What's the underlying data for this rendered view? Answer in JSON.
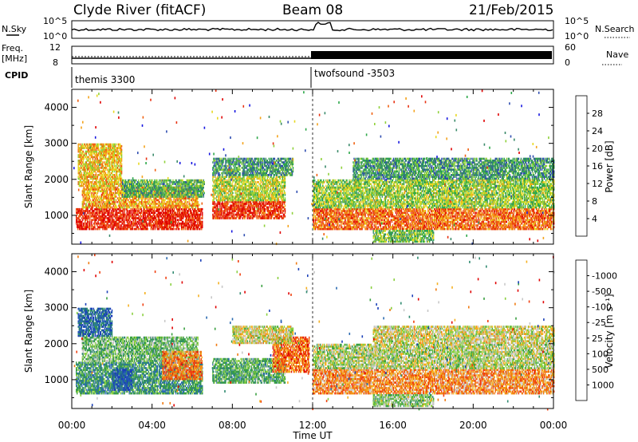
{
  "header": {
    "station": "Clyde River (fitACF)",
    "beam": "Beam 08",
    "date": "21/Feb/2015"
  },
  "top_panels": {
    "nsky_label": "N.Sky",
    "nsky_ticks": [
      "10^5",
      "10^0"
    ],
    "nsearch_label": "N.Search",
    "nsearch_ticks": [
      "10^5",
      "10^0"
    ],
    "freq_label_1": "Freq.",
    "freq_label_2": "[MHz]",
    "freq_ticks": [
      "12",
      "8"
    ],
    "nave_label": "Nave",
    "nave_ticks": [
      "60",
      "0"
    ],
    "cpid_label": "CPID",
    "modes": [
      {
        "name": "themis 3300",
        "start_hour": 0
      },
      {
        "name": "twofsound -3503",
        "start_hour": 12
      }
    ]
  },
  "chart_data": [
    {
      "type": "heatmap",
      "title": "",
      "xlabel": "Time UT",
      "ylabel": "Slant Range [km]",
      "x_ticks": [
        "00:00",
        "04:00",
        "08:00",
        "12:00",
        "16:00",
        "20:00",
        "00:00"
      ],
      "x_range_hours": [
        0,
        24
      ],
      "y_ticks": [
        1000,
        2000,
        3000,
        4000
      ],
      "y_range": [
        200,
        4500
      ],
      "colorbar": {
        "label": "Power [dB]",
        "ticks": [
          "4",
          "8",
          "12",
          "16",
          "20",
          "24",
          "28"
        ],
        "colors": [
          "#1515e0",
          "#2e4db0",
          "#3a8a6a",
          "#2ea84a",
          "#8fd13a",
          "#e8d820",
          "#f4a21a",
          "#f06010",
          "#e83010",
          "#e00000"
        ]
      },
      "blobs": [
        {
          "t0": 0.2,
          "t1": 6.5,
          "r0": 600,
          "r1": 1200,
          "v": 0.88
        },
        {
          "t0": 0.5,
          "t1": 6.3,
          "r0": 1200,
          "r1": 1800,
          "v": 0.65
        },
        {
          "t0": 0.3,
          "t1": 2.5,
          "r0": 1800,
          "r1": 3000,
          "v": 0.6
        },
        {
          "t0": 2.5,
          "t1": 6.6,
          "r0": 1500,
          "r1": 2000,
          "v": 0.35
        },
        {
          "t0": 7.0,
          "t1": 10.6,
          "r0": 900,
          "r1": 1400,
          "v": 0.85
        },
        {
          "t0": 7.0,
          "t1": 10.6,
          "r0": 1400,
          "r1": 2100,
          "v": 0.5
        },
        {
          "t0": 7.0,
          "t1": 11.0,
          "r0": 2100,
          "r1": 2600,
          "v": 0.3
        },
        {
          "t0": 12.0,
          "t1": 24.0,
          "r0": 600,
          "r1": 1200,
          "v": 0.75
        },
        {
          "t0": 12.0,
          "t1": 24.0,
          "r0": 1200,
          "r1": 2000,
          "v": 0.45
        },
        {
          "t0": 14.0,
          "t1": 24.0,
          "r0": 2000,
          "r1": 2600,
          "v": 0.3
        },
        {
          "t0": 15.0,
          "t1": 18.0,
          "r0": 250,
          "r1": 600,
          "v": 0.4
        }
      ]
    },
    {
      "type": "heatmap",
      "title": "",
      "xlabel": "Time UT",
      "ylabel": "Slant Range [km]",
      "x_ticks": [
        "00:00",
        "04:00",
        "08:00",
        "12:00",
        "16:00",
        "20:00",
        "00:00"
      ],
      "x_range_hours": [
        0,
        24
      ],
      "y_ticks": [
        1000,
        2000,
        3000,
        4000
      ],
      "y_range": [
        200,
        4500
      ],
      "colorbar": {
        "label": "Velocity [m s⁻¹]",
        "ticks": [
          "1000",
          "500",
          "100",
          "25",
          "-25",
          "-100",
          "-500",
          "-1000"
        ],
        "colors": [
          "#1a3fb8",
          "#2a6ab0",
          "#2f8a70",
          "#3aa040",
          "#8ad040",
          "#c8c8c8",
          "#f5b020",
          "#f07a10",
          "#f04010",
          "#e00000"
        ]
      },
      "blobs": [
        {
          "t0": 0.2,
          "t1": 6.5,
          "r0": 600,
          "r1": 1500,
          "v": 0.28
        },
        {
          "t0": 2.0,
          "t1": 3.0,
          "r0": 700,
          "r1": 1300,
          "v": 0.1
        },
        {
          "t0": 0.5,
          "t1": 6.3,
          "r0": 1500,
          "r1": 2200,
          "v": 0.4
        },
        {
          "t0": 0.3,
          "t1": 2.0,
          "r0": 2200,
          "r1": 3000,
          "v": 0.15
        },
        {
          "t0": 4.5,
          "t1": 6.5,
          "r0": 1000,
          "r1": 1800,
          "v": 0.75
        },
        {
          "t0": 7.0,
          "t1": 10.6,
          "r0": 900,
          "r1": 1600,
          "v": 0.35
        },
        {
          "t0": 10.0,
          "t1": 11.8,
          "r0": 1200,
          "r1": 2200,
          "v": 0.78
        },
        {
          "t0": 8.0,
          "t1": 11.0,
          "r0": 2000,
          "r1": 2500,
          "v": 0.55
        },
        {
          "t0": 12.0,
          "t1": 24.0,
          "r0": 600,
          "r1": 1300,
          "v": 0.72
        },
        {
          "t0": 12.0,
          "t1": 24.0,
          "r0": 1300,
          "r1": 2000,
          "v": 0.5
        },
        {
          "t0": 15.0,
          "t1": 24.0,
          "r0": 2000,
          "r1": 2500,
          "v": 0.55
        },
        {
          "t0": 15.0,
          "t1": 18.0,
          "r0": 250,
          "r1": 600,
          "v": 0.45
        }
      ]
    }
  ]
}
